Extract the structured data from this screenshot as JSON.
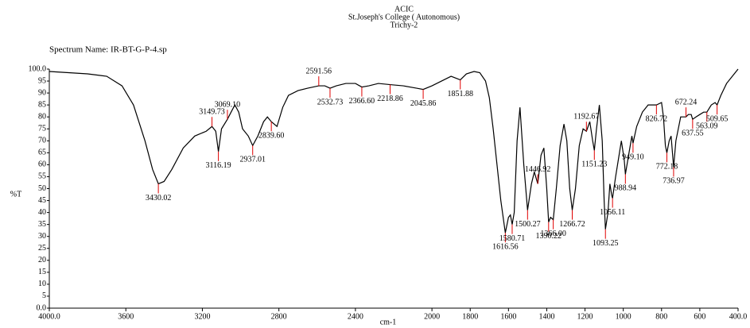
{
  "chart_data": {
    "type": "line",
    "header": [
      "ACIC",
      "St.Joseph's College ( Autonomous)",
      "Trichy-2"
    ],
    "title": "Spectrum Name: IR-BT-G-P-4.sp",
    "x_label": "cm-1",
    "y_label": "%T",
    "color": "#000000",
    "peak_color": "#e00000",
    "xlim": [
      4000,
      400
    ],
    "ylim": [
      0,
      100
    ],
    "xticks": [
      {
        "value": 4000,
        "label": "4000.0"
      },
      3600,
      3200,
      2800,
      2400,
      2000,
      1800,
      1600,
      1400,
      1200,
      1000,
      800,
      600,
      {
        "value": 400,
        "label": "400.0"
      }
    ],
    "yticks": [
      {
        "value": 0,
        "label": "0.0"
      },
      5,
      10,
      15,
      20,
      25,
      30,
      35,
      40,
      45,
      50,
      55,
      60,
      65,
      70,
      75,
      80,
      85,
      90,
      95,
      {
        "value": 100,
        "label": "100.0"
      }
    ],
    "x": [
      4000,
      3900,
      3800,
      3700,
      3620,
      3560,
      3500,
      3460,
      3430,
      3400,
      3360,
      3300,
      3240,
      3180,
      3149.73,
      3130,
      3116.19,
      3100,
      3069.1,
      3050,
      3030,
      3010,
      2990,
      2960,
      2937.01,
      2910,
      2880,
      2860,
      2839.6,
      2810,
      2780,
      2750,
      2700,
      2650,
      2591.56,
      2560,
      2532.73,
      2500,
      2450,
      2400,
      2366.6,
      2330,
      2280,
      2218.86,
      2150,
      2080,
      2045.86,
      2000,
      1950,
      1900,
      1851.88,
      1820,
      1780,
      1750,
      1720,
      1700,
      1680,
      1660,
      1640,
      1616.56,
      1600,
      1590,
      1580.71,
      1570,
      1555,
      1540,
      1520,
      1500.27,
      1480,
      1465,
      1446.92,
      1430,
      1415,
      1400,
      1390.22,
      1380,
      1366,
      1350,
      1330,
      1310,
      1295,
      1280,
      1266.72,
      1250,
      1230,
      1210,
      1192.67,
      1175,
      1160,
      1151.23,
      1140,
      1125,
      1110,
      1100,
      1093.25,
      1080,
      1070,
      1060,
      1056.11,
      1040,
      1020,
      1010,
      995,
      988.94,
      970,
      955,
      949.1,
      930,
      900,
      870,
      840,
      826.72,
      800,
      790,
      780,
      772.18,
      760,
      750,
      740,
      736.97,
      725,
      700,
      690,
      672.24,
      660,
      645,
      637.55,
      620,
      600,
      580,
      563.09,
      540,
      520,
      509.65,
      490,
      460,
      420,
      400
    ],
    "values": [
      99,
      98.5,
      98,
      97,
      93,
      85,
      70,
      58,
      52,
      53,
      58,
      67,
      72,
      74,
      76,
      74,
      65.5,
      75,
      79,
      82,
      85,
      82,
      75,
      72,
      68,
      72,
      78,
      80,
      78,
      76,
      84,
      89,
      91,
      92,
      93,
      93,
      92,
      93,
      94,
      94,
      92.5,
      93,
      94,
      93.5,
      93,
      92,
      91.5,
      93,
      95,
      97,
      95.5,
      98,
      99,
      98.5,
      95,
      88,
      75,
      60,
      45,
      31.5,
      38,
      39,
      35,
      40,
      70,
      84,
      60,
      41,
      52,
      57,
      52,
      64,
      67,
      50,
      36,
      38,
      37,
      50,
      68,
      77,
      70,
      50,
      41,
      50,
      68,
      75,
      74,
      78,
      70,
      66,
      75,
      85,
      70,
      45,
      33,
      40,
      52,
      47,
      46,
      55,
      65,
      70,
      62,
      56,
      65,
      72,
      69,
      76,
      82,
      85,
      85,
      85,
      86,
      80,
      68,
      65,
      70,
      72,
      62,
      59,
      70,
      80,
      80,
      80,
      81,
      81,
      79,
      80,
      81,
      82,
      82,
      85,
      86,
      85,
      89,
      94,
      98,
      100
    ],
    "peaks": [
      {
        "x": 3430.02,
        "y": 52
      },
      {
        "x": 3149.73,
        "y": 76
      },
      {
        "x": {
          "value": 3069.1,
          "label": "3069.10"
        },
        "y": 79
      },
      {
        "x": 3116.19,
        "y": 65.5
      },
      {
        "x": 2937.01,
        "y": 68
      },
      {
        "x": {
          "value": 2839.6,
          "label": "2839.60"
        },
        "y": 78
      },
      {
        "x": 2591.56,
        "y": 93
      },
      {
        "x": 2532.73,
        "y": 92
      },
      {
        "x": {
          "value": 2366.6,
          "label": "2366.60"
        },
        "y": 92.5
      },
      {
        "x": 2218.86,
        "y": 93.5
      },
      {
        "x": 2045.86,
        "y": 91.5
      },
      {
        "x": 1851.88,
        "y": 95.5
      },
      {
        "x": 1616.56,
        "y": 31.5
      },
      {
        "x": 1580.71,
        "y": 35
      },
      {
        "x": 1500.27,
        "y": 41
      },
      {
        "x": 1446.92,
        "y": 52
      },
      {
        "x": 1390.22,
        "y": 36
      },
      {
        "x": {
          "value": 1366,
          "label": "1366.00"
        },
        "y": 37
      },
      {
        "x": 1266.72,
        "y": 41
      },
      {
        "x": 1192.67,
        "y": 74
      },
      {
        "x": 1151.23,
        "y": 66
      },
      {
        "x": 1093.25,
        "y": 33
      },
      {
        "x": 1056.11,
        "y": 46
      },
      {
        "x": 988.94,
        "y": 56
      },
      {
        "x": {
          "value": 949.1,
          "label": "949.10"
        },
        "y": 69
      },
      {
        "x": 826.72,
        "y": 85
      },
      {
        "x": 772.18,
        "y": 65
      },
      {
        "x": 736.97,
        "y": 59
      },
      {
        "x": 672.24,
        "y": 80
      },
      {
        "x": 637.55,
        "y": 79
      },
      {
        "x": 563.09,
        "y": 82
      },
      {
        "x": 509.65,
        "y": 85
      }
    ]
  }
}
